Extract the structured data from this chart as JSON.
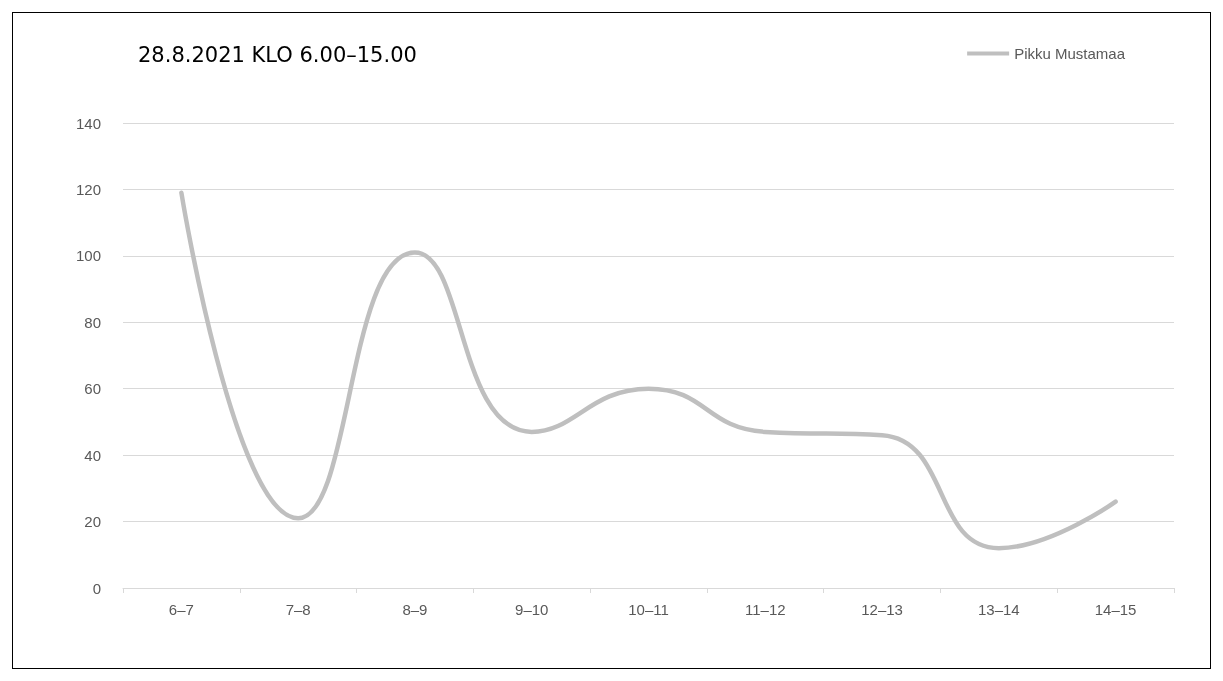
{
  "chart_data": {
    "type": "line",
    "title": "28.8.2021 KLO 6.00–15.00",
    "categories": [
      "6–7",
      "7–8",
      "8–9",
      "9–10",
      "10–11",
      "11–12",
      "12–13",
      "13–14",
      "14–15"
    ],
    "series": [
      {
        "name": "Pikku Mustamaa",
        "color": "#bfbfbf",
        "values": [
          119,
          21,
          101,
          47,
          60,
          47,
          46,
          12,
          26
        ]
      }
    ],
    "ylim": [
      0,
      140
    ],
    "yticks": [
      0,
      20,
      40,
      60,
      80,
      100,
      120,
      140
    ],
    "grid": "y",
    "legend": "top right",
    "marker": "none",
    "line_style": "solid"
  }
}
